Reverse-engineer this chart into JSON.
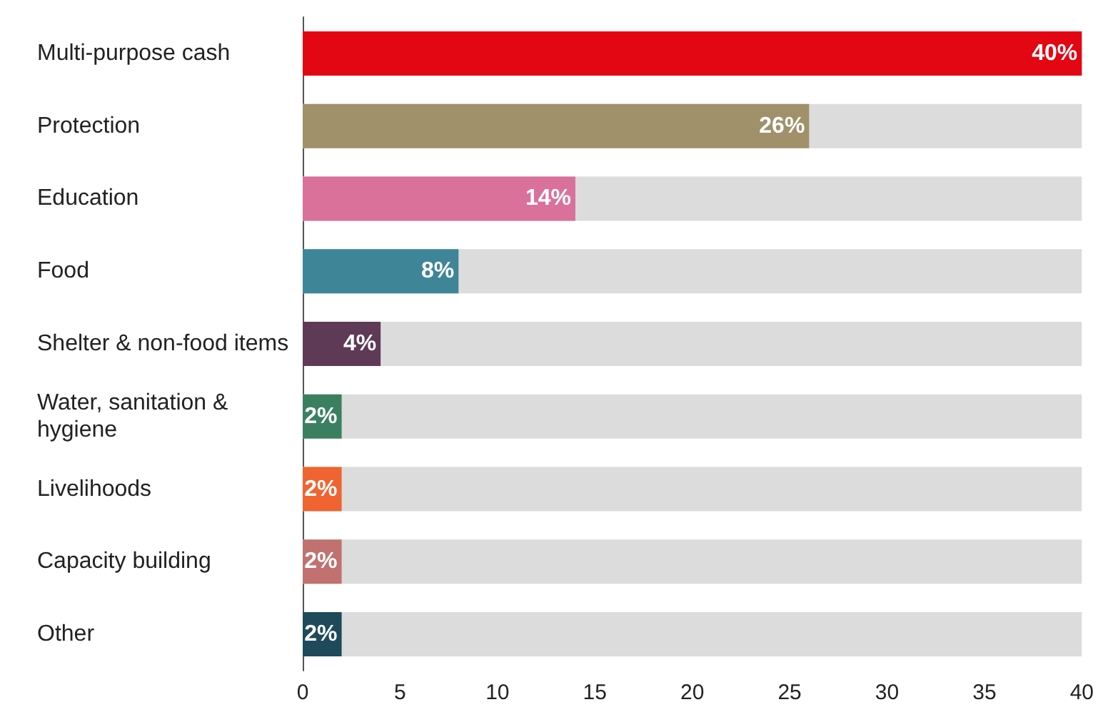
{
  "chart_data": {
    "type": "bar",
    "orientation": "horizontal",
    "categories": [
      "Multi-purpose cash",
      "Protection",
      "Education",
      "Food",
      "Shelter & non-food items",
      "Water, sanitation & hygiene",
      "Livelihoods",
      "Capacity building",
      "Other"
    ],
    "values": [
      40,
      26,
      14,
      8,
      4,
      2,
      2,
      2,
      2
    ],
    "value_labels": [
      "40%",
      "26%",
      "14%",
      "8%",
      "4%",
      "2%",
      "2%",
      "2%",
      "2%"
    ],
    "colors": [
      "#e30613",
      "#a0916b",
      "#d9719b",
      "#3f8598",
      "#5e3a57",
      "#3a8060",
      "#ef6430",
      "#c07170",
      "#1f4a5a"
    ],
    "xlim": [
      0,
      40
    ],
    "xticks": [
      0,
      5,
      10,
      15,
      20,
      25,
      30,
      35,
      40
    ],
    "grid": false
  }
}
